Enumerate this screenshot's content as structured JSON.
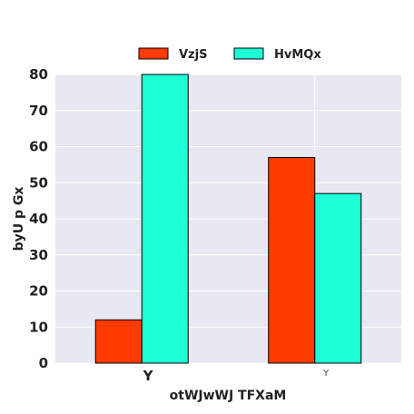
{
  "chart_data": {
    "type": "bar",
    "title": "",
    "xlabel": "otWJwWJ TFXaM",
    "ylabel": "byU p Gx",
    "categories": [
      "Y",
      "Y"
    ],
    "series": [
      {
        "name": "VzjS",
        "values": [
          12,
          57
        ]
      },
      {
        "name": "HvMQx",
        "values": [
          80,
          47
        ]
      }
    ],
    "ylim": [
      0,
      80
    ],
    "yticks": [
      "0",
      "10",
      "20",
      "30",
      "40",
      "50",
      "60",
      "70",
      "80"
    ],
    "grid": true,
    "legend_position": "top-center"
  },
  "colors": {
    "series": [
      "#ff3b00",
      "#1effd8"
    ],
    "plot_background": "#e8e8f2",
    "grid": "#ffffff",
    "bar_edge": "#000000"
  }
}
